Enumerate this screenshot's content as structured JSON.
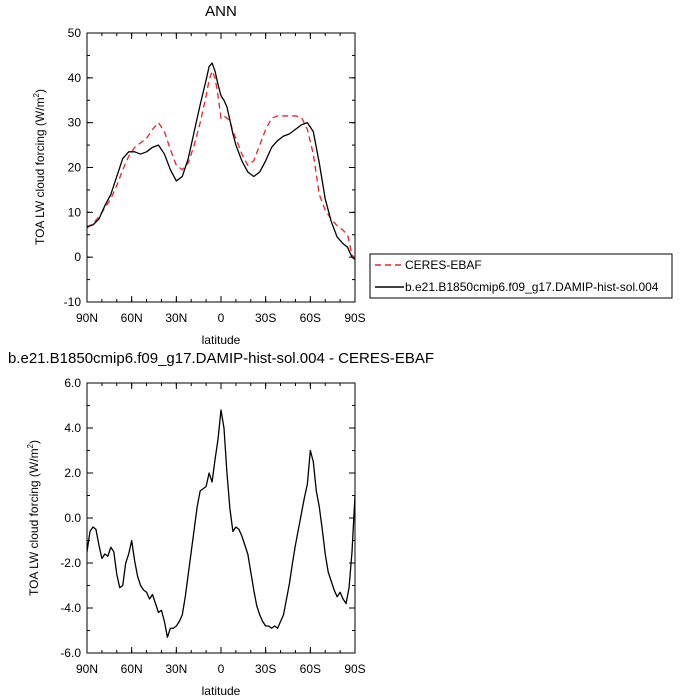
{
  "chart_data": [
    {
      "type": "line",
      "title": "ANN",
      "xlabel": "latitude",
      "ylabel": "TOA LW cloud forcing (W/m",
      "ylabel_sup": "2",
      "ylabel_close": ")",
      "xlim": [
        90,
        -90
      ],
      "ylim": [
        -10,
        50
      ],
      "x_ticks": [
        {
          "value": 90,
          "label": "90N"
        },
        {
          "value": 60,
          "label": "60N"
        },
        {
          "value": 30,
          "label": "30N"
        },
        {
          "value": 0,
          "label": "0"
        },
        {
          "value": -30,
          "label": "30S"
        },
        {
          "value": -60,
          "label": "60S"
        },
        {
          "value": -90,
          "label": "90S"
        }
      ],
      "y_ticks": [
        {
          "value": 50,
          "label": "50"
        },
        {
          "value": 40,
          "label": "40"
        },
        {
          "value": 30,
          "label": "30"
        },
        {
          "value": 20,
          "label": "20"
        },
        {
          "value": 10,
          "label": "10"
        },
        {
          "value": 0,
          "label": "0"
        },
        {
          "value": -10,
          "label": "-10"
        }
      ],
      "legend_position": "right",
      "series": [
        {
          "name": "CERES-EBAF",
          "color": "#e8232a",
          "dash": true,
          "x": [
            90,
            86,
            82,
            78,
            74,
            70,
            66,
            62,
            58,
            54,
            50,
            46,
            42,
            38,
            34,
            30,
            26,
            22,
            18,
            14,
            10,
            8,
            6,
            4,
            2,
            0,
            -2,
            -4,
            -6,
            -8,
            -10,
            -14,
            -18,
            -22,
            -26,
            -30,
            -34,
            -38,
            -42,
            -46,
            -50,
            -54,
            -58,
            -62,
            -66,
            -70,
            -74,
            -78,
            -82,
            -85,
            -88,
            -90
          ],
          "y": [
            6.5,
            7.5,
            9,
            11,
            13,
            16,
            19.5,
            22.5,
            24.5,
            25.5,
            26.5,
            28.5,
            30,
            28,
            24,
            20.5,
            19.5,
            21,
            25,
            30,
            36,
            39.5,
            41.5,
            40,
            36,
            31,
            31.5,
            31,
            30.5,
            28,
            26.5,
            23,
            20.5,
            21.5,
            25,
            28.5,
            31,
            31.5,
            31.5,
            31.5,
            31.5,
            31.2,
            28.5,
            23,
            14,
            10.5,
            8.5,
            7,
            6,
            5,
            0.5,
            -0.3
          ]
        },
        {
          "name": "b.e21.B1850cmip6.f09_g17.DAMIP-hist-sol.004",
          "color": "#000000",
          "dash": false,
          "x": [
            90,
            86,
            82,
            78,
            74,
            70,
            66,
            62,
            58,
            54,
            50,
            46,
            42,
            38,
            34,
            30,
            26,
            22,
            18,
            14,
            10,
            8,
            6,
            4,
            2,
            0,
            -2,
            -4,
            -6,
            -8,
            -10,
            -14,
            -18,
            -22,
            -26,
            -30,
            -34,
            -38,
            -42,
            -46,
            -50,
            -54,
            -58,
            -62,
            -66,
            -70,
            -74,
            -78,
            -82,
            -85,
            -88,
            -90
          ],
          "y": [
            6.8,
            7.2,
            8.5,
            11.5,
            14,
            18,
            22,
            23.5,
            23.5,
            23,
            23.5,
            24.5,
            25,
            23,
            19.5,
            17,
            18,
            22,
            28,
            34,
            39.5,
            42.5,
            43.3,
            41.5,
            38.5,
            36,
            35,
            33.5,
            30.5,
            27.5,
            25,
            21.5,
            19,
            18,
            19,
            21.5,
            24.5,
            26,
            27,
            27.5,
            28.5,
            29.5,
            30,
            28,
            21,
            13,
            8,
            4.5,
            3,
            2.2,
            0,
            -0.5
          ]
        }
      ]
    },
    {
      "type": "line",
      "title": "b.e21.B1850cmip6.f09_g17.DAMIP-hist-sol.004 - CERES-EBAF",
      "xlabel": "latitude",
      "ylabel": "TOA LW cloud forcing (W/m",
      "ylabel_sup": "2",
      "ylabel_close": ")",
      "xlim": [
        90,
        -90
      ],
      "ylim": [
        -6,
        6
      ],
      "x_ticks": [
        {
          "value": 90,
          "label": "90N"
        },
        {
          "value": 60,
          "label": "60N"
        },
        {
          "value": 30,
          "label": "30N"
        },
        {
          "value": 0,
          "label": "0"
        },
        {
          "value": -30,
          "label": "30S"
        },
        {
          "value": -60,
          "label": "60S"
        },
        {
          "value": -90,
          "label": "90S"
        }
      ],
      "y_ticks": [
        {
          "value": 6,
          "label": "6.0"
        },
        {
          "value": 4,
          "label": "4.0"
        },
        {
          "value": 2,
          "label": "2.0"
        },
        {
          "value": 0,
          "label": "0.0"
        },
        {
          "value": -2,
          "label": "-2.0"
        },
        {
          "value": -4,
          "label": "-4.0"
        },
        {
          "value": -6,
          "label": "-6.0"
        }
      ],
      "series": [
        {
          "name": "",
          "color": "#000000",
          "dash": false,
          "x": [
            90,
            88,
            86,
            84,
            82,
            80,
            78,
            76,
            74,
            72,
            70,
            68,
            66,
            64,
            62,
            60,
            58,
            56,
            54,
            52,
            50,
            48,
            46,
            44,
            42,
            40,
            38,
            36,
            34,
            32,
            30,
            28,
            26,
            24,
            22,
            20,
            18,
            16,
            14,
            12,
            10,
            8,
            6,
            4,
            2,
            0,
            -2,
            -4,
            -6,
            -8,
            -10,
            -12,
            -14,
            -16,
            -18,
            -20,
            -22,
            -24,
            -26,
            -28,
            -30,
            -32,
            -34,
            -36,
            -38,
            -40,
            -42,
            -44,
            -46,
            -48,
            -50,
            -52,
            -54,
            -56,
            -58,
            -60,
            -62,
            -64,
            -66,
            -68,
            -70,
            -72,
            -74,
            -76,
            -78,
            -80,
            -82,
            -84,
            -86,
            -88,
            -90
          ],
          "y": [
            -1.5,
            -0.6,
            -0.4,
            -0.5,
            -1.2,
            -1.8,
            -1.6,
            -1.7,
            -1.3,
            -1.5,
            -2.5,
            -3.1,
            -3.0,
            -2.0,
            -1.6,
            -1.0,
            -1.9,
            -2.6,
            -3.0,
            -3.2,
            -3.3,
            -3.6,
            -3.4,
            -3.8,
            -4.2,
            -4.1,
            -4.6,
            -5.3,
            -4.9,
            -4.9,
            -4.8,
            -4.6,
            -4.3,
            -3.5,
            -2.5,
            -1.5,
            -0.5,
            0.5,
            1.2,
            1.3,
            1.4,
            2.0,
            1.6,
            2.6,
            3.5,
            4.8,
            4.0,
            2.0,
            0.4,
            -0.6,
            -0.4,
            -0.5,
            -0.8,
            -1.2,
            -1.6,
            -2.4,
            -3.2,
            -3.9,
            -4.3,
            -4.6,
            -4.8,
            -4.8,
            -4.9,
            -4.8,
            -4.9,
            -4.6,
            -4.3,
            -3.6,
            -2.9,
            -2.0,
            -1.2,
            -0.5,
            0.2,
            0.9,
            1.5,
            3.0,
            2.5,
            1.2,
            0.5,
            -0.5,
            -1.6,
            -2.4,
            -2.8,
            -3.2,
            -3.5,
            -3.3,
            -3.6,
            -3.8,
            -3.1,
            -1.5,
            1.0
          ]
        }
      ]
    }
  ]
}
